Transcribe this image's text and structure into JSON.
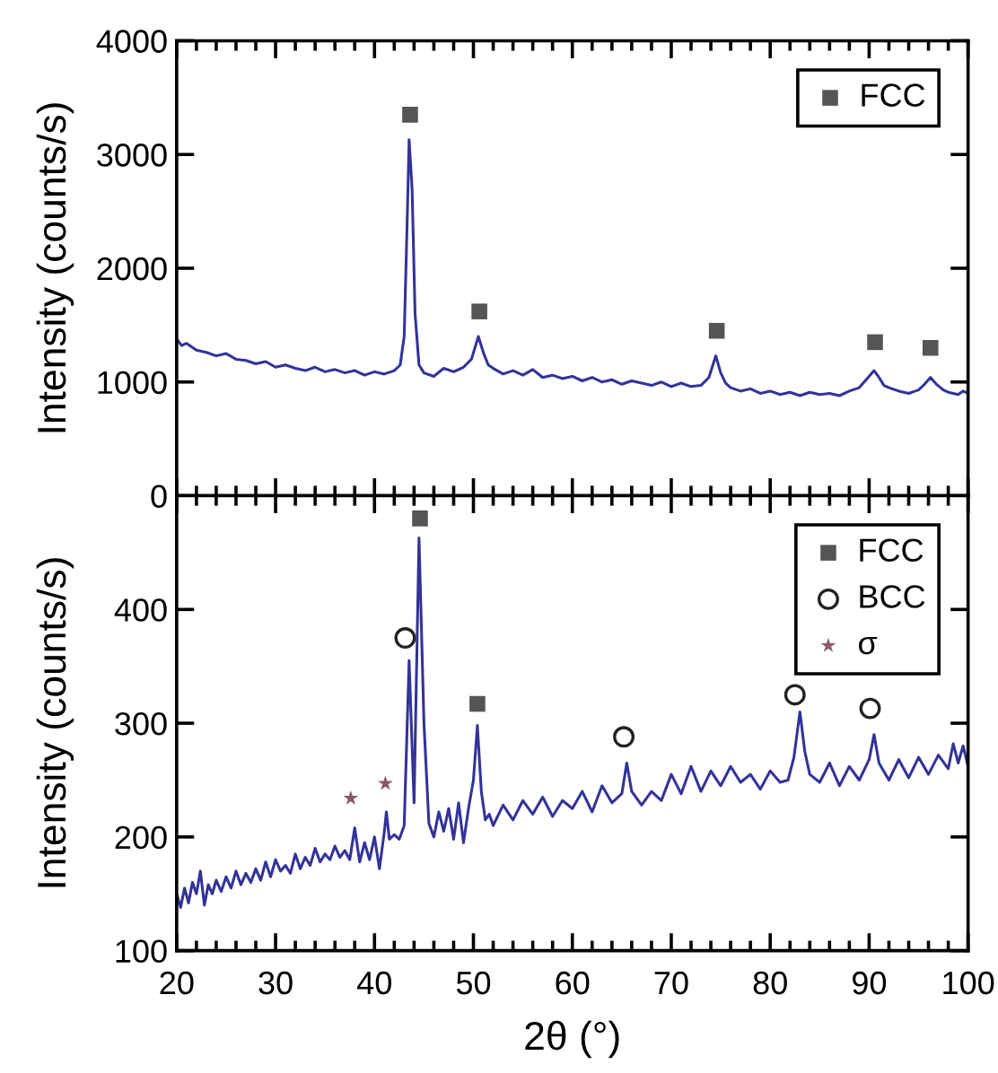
{
  "chart_data": [
    {
      "type": "line",
      "ylabel": "Intensity (counts/s)",
      "xlim": [
        20,
        100
      ],
      "xticks": [
        20,
        30,
        40,
        50,
        60,
        70,
        80,
        90,
        100
      ],
      "ylim": [
        0,
        4000
      ],
      "yticks": [
        0,
        1000,
        2000,
        3000,
        4000
      ],
      "tick_labels": "y",
      "legend": "top right",
      "grid": false,
      "series": [
        {
          "color": "#333399",
          "x": [
            20,
            20.5,
            21,
            22,
            23,
            24,
            25,
            26,
            27,
            28,
            29,
            30,
            31,
            32,
            33,
            34,
            35,
            36,
            37,
            38,
            39,
            40,
            41,
            42,
            42.6,
            43,
            43.3,
            43.5,
            43.8,
            44.1,
            44.5,
            45,
            46,
            47,
            48,
            49,
            49.8,
            50.5,
            51,
            51.5,
            52,
            53,
            54,
            55,
            56,
            57,
            58,
            59,
            60,
            61,
            62,
            63,
            64,
            65,
            66,
            67,
            68,
            69,
            70,
            71,
            72,
            73,
            73.8,
            74.5,
            75,
            75.5,
            76,
            77,
            78,
            79,
            80,
            81,
            82,
            83,
            84,
            85,
            86,
            87,
            88,
            89,
            89.8,
            90.5,
            91,
            91.5,
            92,
            93,
            94,
            95,
            95.6,
            96.2,
            96.8,
            97.5,
            98,
            99,
            99.5,
            100
          ],
          "values": [
            1380,
            1320,
            1340,
            1280,
            1260,
            1230,
            1250,
            1200,
            1190,
            1160,
            1180,
            1130,
            1150,
            1120,
            1100,
            1130,
            1090,
            1110,
            1080,
            1100,
            1060,
            1090,
            1070,
            1100,
            1150,
            1400,
            2400,
            3130,
            2700,
            1600,
            1150,
            1080,
            1050,
            1120,
            1090,
            1130,
            1200,
            1400,
            1260,
            1150,
            1120,
            1070,
            1100,
            1060,
            1110,
            1040,
            1060,
            1030,
            1050,
            1010,
            1040,
            1000,
            1020,
            980,
            1010,
            990,
            970,
            1000,
            960,
            990,
            960,
            970,
            1040,
            1230,
            1080,
            990,
            950,
            920,
            940,
            900,
            920,
            890,
            910,
            880,
            910,
            890,
            900,
            880,
            920,
            950,
            1030,
            1100,
            1040,
            970,
            950,
            920,
            900,
            930,
            980,
            1040,
            980,
            930,
            910,
            890,
            920,
            900
          ]
        },
        {
          "type": "scatter",
          "name": "FCC",
          "marker": "square",
          "color": "#555555",
          "x": [
            43.6,
            50.6,
            74.6,
            90.6,
            96.2
          ],
          "values": [
            3350,
            1620,
            1450,
            1350,
            1300
          ]
        }
      ]
    },
    {
      "type": "line",
      "xlabel": "2θ (°)",
      "ylabel": "Intensity (counts/s)",
      "xlim": [
        20,
        100
      ],
      "xticks": [
        20,
        30,
        40,
        50,
        60,
        70,
        80,
        90,
        100
      ],
      "ylim": [
        100,
        500
      ],
      "yticks": [
        100,
        200,
        300,
        400
      ],
      "legend": "top right",
      "grid": false,
      "series": [
        {
          "color": "#333399",
          "x": [
            20,
            20.4,
            20.8,
            21.2,
            21.6,
            22,
            22.4,
            22.8,
            23.2,
            23.6,
            24,
            24.5,
            25,
            25.5,
            26,
            26.5,
            27,
            27.5,
            28,
            28.5,
            29,
            29.5,
            30,
            30.5,
            31,
            31.5,
            32,
            32.5,
            33,
            33.5,
            34,
            34.5,
            35,
            35.5,
            36,
            36.5,
            37,
            37.5,
            38,
            38.5,
            39,
            39.5,
            40,
            40.5,
            41,
            41.2,
            41.5,
            42,
            42.5,
            43,
            43.5,
            44,
            44.5,
            45,
            45.5,
            46,
            46.5,
            47,
            47.5,
            48,
            48.5,
            49,
            49.5,
            50,
            50.4,
            50.8,
            51.2,
            51.6,
            52,
            53,
            54,
            55,
            56,
            57,
            58,
            59,
            60,
            61,
            62,
            63,
            64,
            65,
            65.5,
            66,
            67,
            68,
            69,
            70,
            71,
            72,
            73,
            74,
            75,
            76,
            77,
            78,
            79,
            80,
            81,
            81.8,
            82.4,
            83,
            83.5,
            84,
            85,
            86,
            87,
            88,
            89,
            90,
            90.5,
            91,
            92,
            93,
            94,
            95,
            96,
            97,
            98,
            98.5,
            99,
            99.5,
            100
          ],
          "values": [
            150,
            138,
            155,
            142,
            160,
            150,
            170,
            140,
            158,
            150,
            162,
            152,
            165,
            155,
            170,
            158,
            168,
            160,
            172,
            162,
            178,
            165,
            180,
            170,
            175,
            168,
            185,
            172,
            182,
            175,
            190,
            178,
            185,
            180,
            192,
            182,
            188,
            180,
            208,
            178,
            195,
            180,
            200,
            172,
            205,
            222,
            198,
            202,
            198,
            210,
            355,
            230,
            463,
            300,
            212,
            200,
            222,
            205,
            225,
            198,
            230,
            195,
            225,
            250,
            298,
            240,
            215,
            220,
            210,
            228,
            215,
            232,
            220,
            235,
            218,
            232,
            225,
            240,
            222,
            245,
            230,
            238,
            265,
            240,
            228,
            240,
            232,
            255,
            238,
            262,
            240,
            258,
            245,
            262,
            248,
            255,
            242,
            258,
            248,
            250,
            270,
            310,
            275,
            255,
            248,
            265,
            245,
            262,
            250,
            268,
            290,
            265,
            250,
            268,
            252,
            270,
            255,
            272,
            260,
            282,
            265,
            280,
            262
          ]
        },
        {
          "type": "scatter",
          "name": "FCC",
          "marker": "square",
          "color": "#555555",
          "x": [
            44.6,
            50.4
          ],
          "values": [
            480,
            317
          ]
        },
        {
          "type": "scatter",
          "name": "BCC",
          "marker": "circle",
          "color": "#222222",
          "x": [
            43.1,
            65.2,
            82.5,
            90.1
          ],
          "values": [
            375,
            288,
            325,
            313
          ]
        },
        {
          "type": "scatter",
          "name": "σ",
          "marker": "star",
          "color": "#8a5a6a",
          "x": [
            37.6,
            41.1
          ],
          "values": [
            234,
            247
          ]
        }
      ]
    }
  ]
}
